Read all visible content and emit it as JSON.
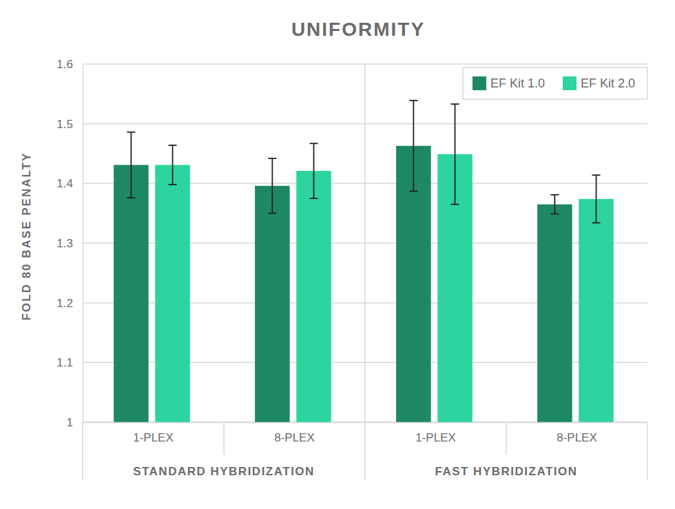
{
  "chart_data": {
    "type": "bar",
    "title": "UNIFORMITY",
    "y_label": "FOLD 80 BASE PENALTY",
    "categories": [
      "1-PLEX",
      "8-PLEX",
      "1-PLEX",
      "8-PLEX"
    ],
    "category_groups": [
      "STANDARD HYBRIDIZATION",
      "STANDARD HYBRIDIZATION",
      "FAST HYBRIDIZATION",
      "FAST HYBRIDIZATION"
    ],
    "series": [
      {
        "name": "EF Kit 1.0",
        "color": "#1e8865",
        "values": [
          1.431,
          1.396,
          1.463,
          1.365
        ],
        "errors": [
          0.055,
          0.046,
          0.076,
          0.016
        ]
      },
      {
        "name": "EF Kit 2.0",
        "color": "#2dd49f",
        "values": [
          1.431,
          1.421,
          1.449,
          1.374
        ],
        "errors": [
          0.033,
          0.046,
          0.084,
          0.04
        ]
      }
    ],
    "ylim": [
      1,
      1.6
    ],
    "yticks": [
      1,
      1.1,
      1.2,
      1.3,
      1.4,
      1.5,
      1.6
    ],
    "grid": true,
    "legend": "upper right"
  }
}
